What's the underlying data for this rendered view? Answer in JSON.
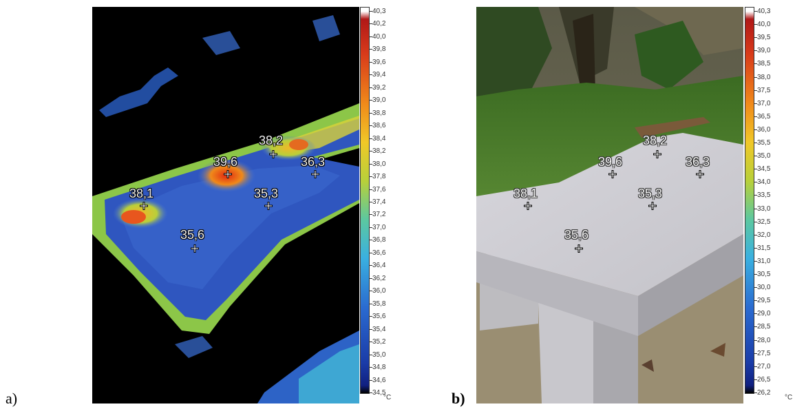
{
  "panels": [
    {
      "label": "a)",
      "kind": "thermal",
      "markers": [
        "38,2",
        "39,6",
        "36,3",
        "38,1",
        "35,3",
        "35,6"
      ],
      "scale": {
        "unit": "°C",
        "ticks": [
          "40,3",
          "40,2",
          "40,0",
          "39,8",
          "39,6",
          "39,4",
          "39,2",
          "39,0",
          "38,8",
          "38,6",
          "38,4",
          "38,2",
          "38,0",
          "37,8",
          "37,6",
          "37,4",
          "37,2",
          "37,0",
          "36,8",
          "36,6",
          "36,4",
          "36,2",
          "36,0",
          "35,8",
          "35,6",
          "35,4",
          "35,2",
          "35,0",
          "34,8",
          "34,6",
          "34,5"
        ]
      }
    },
    {
      "label": "b)",
      "kind": "photo",
      "markers": [
        "38,2",
        "39,6",
        "36,3",
        "38,1",
        "35,3",
        "35,6"
      ],
      "scale": {
        "unit": "°C",
        "ticks": [
          "40,3",
          "40,0",
          "39,5",
          "39,0",
          "38,5",
          "38,0",
          "37,5",
          "37,0",
          "36,5",
          "36,0",
          "35,5",
          "35,0",
          "34,5",
          "34,0",
          "33,5",
          "33,0",
          "32,5",
          "32,0",
          "31,5",
          "31,0",
          "30,5",
          "30,0",
          "29,5",
          "29,0",
          "28,5",
          "28,0",
          "27,5",
          "27,0",
          "26,5",
          "26,2"
        ]
      }
    }
  ],
  "colors": {
    "thermal_background": "#000000",
    "slab_low": "#2f4fb8",
    "slab_high": "#d6401a",
    "grass": "#3f7a2a",
    "slab_photo": "#cfcfd3"
  }
}
